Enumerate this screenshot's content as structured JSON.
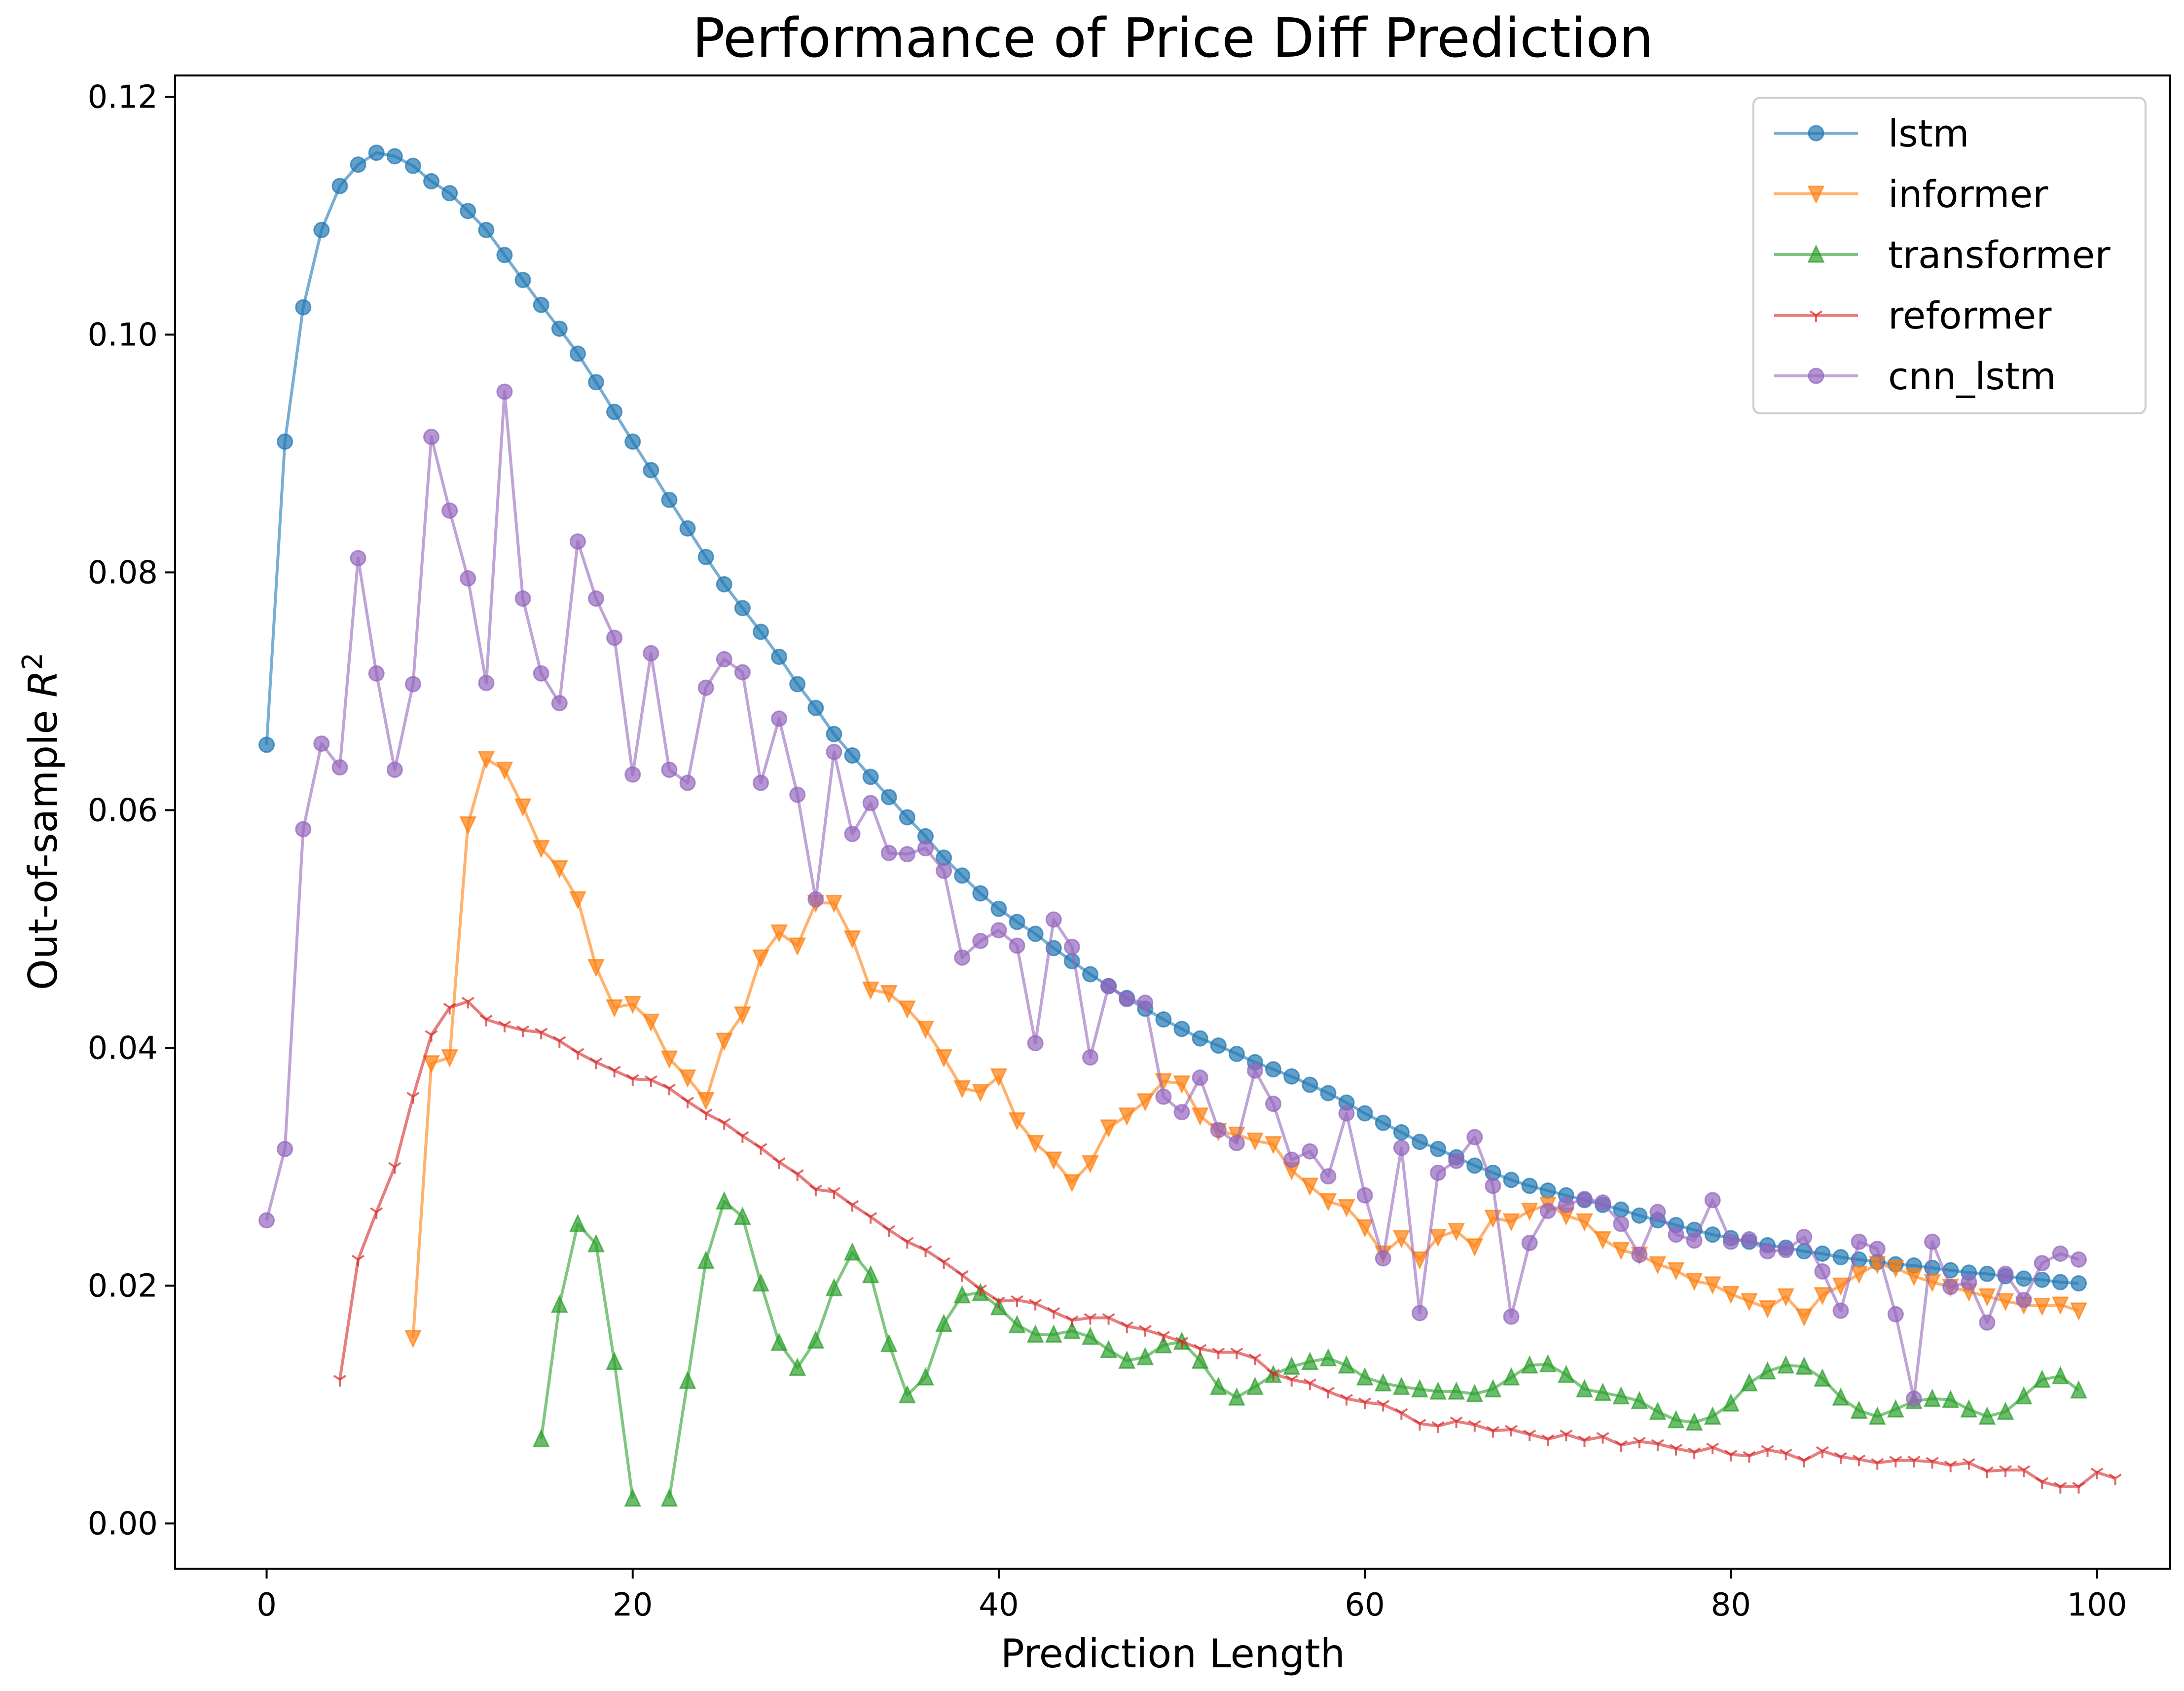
{
  "chart_data": {
    "type": "line",
    "title": "Performance of Price Diff Prediction",
    "xlabel": "Prediction Length",
    "ylabel_main": "Out-of-sample ",
    "ylabel_var": "R",
    "ylabel_sup": "2",
    "xlim": [
      -5,
      104
    ],
    "ylim": [
      -0.0038,
      0.1218
    ],
    "xticks": [
      0,
      20,
      40,
      60,
      80,
      100
    ],
    "xtick_labels": [
      "0",
      "20",
      "40",
      "60",
      "80",
      "100"
    ],
    "yticks": [
      0.0,
      0.02,
      0.04,
      0.06,
      0.08,
      0.1,
      0.12
    ],
    "ytick_labels": [
      "0.00",
      "0.02",
      "0.04",
      "0.06",
      "0.08",
      "0.10",
      "0.12"
    ],
    "grid": false,
    "legend_position": "top-right",
    "series": [
      {
        "name": "lstm",
        "color": "#1f77b4",
        "marker": "circle",
        "x_start": 0,
        "values": [
          0.0655,
          0.091,
          0.1023,
          0.1088,
          0.1125,
          0.1143,
          0.1153,
          0.115,
          0.1142,
          0.1129,
          0.1119,
          0.1104,
          0.1088,
          0.1067,
          0.1046,
          0.1025,
          0.1005,
          0.0984,
          0.096,
          0.0935,
          0.091,
          0.0886,
          0.0861,
          0.0837,
          0.0813,
          0.079,
          0.077,
          0.075,
          0.0729,
          0.0706,
          0.0686,
          0.0664,
          0.0646,
          0.0628,
          0.0611,
          0.0594,
          0.0578,
          0.056,
          0.0545,
          0.053,
          0.0517,
          0.0506,
          0.0496,
          0.0484,
          0.0473,
          0.0462,
          0.0452,
          0.0442,
          0.0433,
          0.0424,
          0.0416,
          0.0408,
          0.0402,
          0.0395,
          0.0388,
          0.0382,
          0.0376,
          0.0369,
          0.0362,
          0.0354,
          0.0345,
          0.0337,
          0.0329,
          0.0321,
          0.0315,
          0.0308,
          0.0301,
          0.0295,
          0.0289,
          0.0284,
          0.028,
          0.0276,
          0.0272,
          0.0268,
          0.0264,
          0.0259,
          0.0255,
          0.0251,
          0.0247,
          0.0243,
          0.024,
          0.0237,
          0.0234,
          0.0232,
          0.0229,
          0.0227,
          0.0224,
          0.0222,
          0.022,
          0.0218,
          0.0217,
          0.0215,
          0.0213,
          0.0211,
          0.021,
          0.0208,
          0.0206,
          0.0205,
          0.0203,
          0.0202
        ]
      },
      {
        "name": "informer",
        "color": "#ff7f0e",
        "marker": "triangle-down",
        "x_start": 8,
        "values": [
          0.0156,
          0.0387,
          0.0392,
          0.0588,
          0.0643,
          0.0634,
          0.0603,
          0.0568,
          0.0551,
          0.0525,
          0.0468,
          0.0434,
          0.0437,
          0.0422,
          0.0391,
          0.0375,
          0.0356,
          0.0406,
          0.0428,
          0.0476,
          0.0497,
          0.0486,
          0.0522,
          0.0522,
          0.0492,
          0.0449,
          0.0446,
          0.0433,
          0.0416,
          0.0392,
          0.0366,
          0.0363,
          0.0376,
          0.0339,
          0.032,
          0.0306,
          0.0287,
          0.0303,
          0.0333,
          0.0343,
          0.0355,
          0.0372,
          0.037,
          0.0343,
          0.033,
          0.0327,
          0.0322,
          0.0319,
          0.0297,
          0.0284,
          0.0271,
          0.0266,
          0.0249,
          0.0227,
          0.024,
          0.0222,
          0.0241,
          0.0246,
          0.0233,
          0.0257,
          0.0254,
          0.0263,
          0.0268,
          0.0259,
          0.0254,
          0.0239,
          0.023,
          0.0226,
          0.0218,
          0.0213,
          0.0204,
          0.0201,
          0.0193,
          0.0187,
          0.0181,
          0.0191,
          0.0174,
          0.0192,
          0.02,
          0.021,
          0.0218,
          0.0215,
          0.0208,
          0.0203,
          0.0199,
          0.0195,
          0.0191,
          0.0187,
          0.0184,
          0.0183,
          0.0184,
          0.0179
        ]
      },
      {
        "name": "transformer",
        "color": "#2ca02c",
        "marker": "triangle-up",
        "x_start": 15,
        "values": [
          0.0071,
          0.0184,
          0.0252,
          0.0235,
          0.0136,
          0.0021,
          null,
          0.0021,
          0.012,
          0.0221,
          0.0271,
          0.0258,
          0.0202,
          0.0152,
          0.0131,
          0.0154,
          0.0198,
          0.0228,
          0.0209,
          0.0151,
          0.0108,
          0.0123,
          0.0168,
          0.0192,
          0.0194,
          0.0182,
          0.0167,
          0.0159,
          0.0159,
          0.0162,
          0.0157,
          0.0146,
          0.0137,
          0.014,
          0.015,
          0.0153,
          0.0137,
          0.0115,
          0.0106,
          0.0115,
          0.0125,
          0.0132,
          0.0136,
          0.0139,
          0.0133,
          0.0123,
          0.0118,
          0.0115,
          0.0113,
          0.0111,
          0.0111,
          0.0109,
          0.0113,
          0.0123,
          0.0133,
          0.0134,
          0.0125,
          0.0113,
          0.011,
          0.0107,
          0.0103,
          0.0094,
          0.0087,
          0.0085,
          0.009,
          0.0101,
          0.0118,
          0.0128,
          0.0133,
          0.0132,
          0.0122,
          0.0106,
          0.0095,
          0.009,
          0.0096,
          0.0103,
          0.0105,
          0.0104,
          0.0096,
          0.009,
          0.0094,
          0.0107,
          0.0121,
          0.0124,
          0.0112
        ]
      },
      {
        "name": "reformer",
        "color": "#d62728",
        "marker": "tri-down",
        "x_start": 4,
        "values": [
          0.0121,
          0.0222,
          0.0262,
          0.03,
          0.0359,
          0.0411,
          0.0434,
          0.0439,
          0.0424,
          0.0419,
          0.0415,
          0.0413,
          0.0406,
          0.0396,
          0.0388,
          0.0381,
          0.0374,
          0.0373,
          0.0366,
          0.0355,
          0.0345,
          0.0337,
          0.0326,
          0.0316,
          0.0304,
          0.0294,
          0.0281,
          0.0279,
          0.0268,
          0.0258,
          0.0247,
          0.0237,
          0.023,
          0.022,
          0.0209,
          0.0197,
          0.0187,
          0.0188,
          0.0185,
          0.0178,
          0.0171,
          0.0173,
          0.0173,
          0.0166,
          0.0163,
          0.0158,
          0.0153,
          0.0147,
          0.0144,
          0.0144,
          0.0139,
          0.0126,
          0.0121,
          0.0118,
          0.0111,
          0.0105,
          0.0102,
          0.01,
          0.0093,
          0.0084,
          0.0082,
          0.0086,
          0.0083,
          0.0078,
          0.0079,
          0.0075,
          0.0071,
          0.0075,
          0.007,
          0.0073,
          0.0066,
          0.0069,
          0.0067,
          0.0063,
          0.006,
          0.0064,
          0.0058,
          0.0057,
          0.0062,
          0.0059,
          0.0053,
          0.0061,
          0.0056,
          0.0054,
          0.0051,
          0.0053,
          0.0053,
          0.0052,
          0.0049,
          0.0051,
          0.0044,
          0.0045,
          0.0045,
          0.0035,
          0.0031,
          0.0031,
          0.0043,
          0.0038
        ]
      },
      {
        "name": "cnn_lstm",
        "color": "#9467bd",
        "marker": "circle",
        "x_start": 0,
        "values": [
          0.0255,
          0.0315,
          0.0584,
          0.0656,
          0.0636,
          0.0812,
          0.0715,
          0.0634,
          0.0706,
          0.0914,
          0.0852,
          0.0795,
          0.0707,
          0.0952,
          0.0778,
          0.0715,
          0.069,
          0.0826,
          0.0778,
          0.0745,
          0.063,
          0.0732,
          0.0634,
          0.0623,
          0.0703,
          0.0727,
          0.0716,
          0.0623,
          0.0677,
          0.0613,
          0.0525,
          0.0649,
          0.058,
          0.0606,
          0.0564,
          0.0563,
          0.0568,
          0.0549,
          0.0476,
          0.049,
          0.0499,
          0.0486,
          0.0404,
          0.0508,
          0.0485,
          0.0392,
          0.0452,
          0.0441,
          0.0438,
          0.0359,
          0.0346,
          0.0375,
          0.0331,
          0.032,
          0.0381,
          0.0353,
          0.0306,
          0.0313,
          0.0292,
          0.0345,
          0.0276,
          0.0223,
          0.0316,
          0.0177,
          0.0295,
          0.0305,
          0.0325,
          0.0284,
          0.0174,
          0.0236,
          0.0263,
          0.0268,
          0.0273,
          0.027,
          0.0252,
          0.0226,
          0.0262,
          0.0243,
          0.0238,
          0.0272,
          0.0237,
          0.0239,
          0.0229,
          0.023,
          0.0241,
          0.0212,
          0.0179,
          0.0237,
          0.0231,
          0.0176,
          0.0105,
          0.0237,
          0.0199,
          0.0203,
          0.0169,
          0.021,
          0.0188,
          0.0219,
          0.0227,
          0.0222
        ]
      }
    ]
  }
}
